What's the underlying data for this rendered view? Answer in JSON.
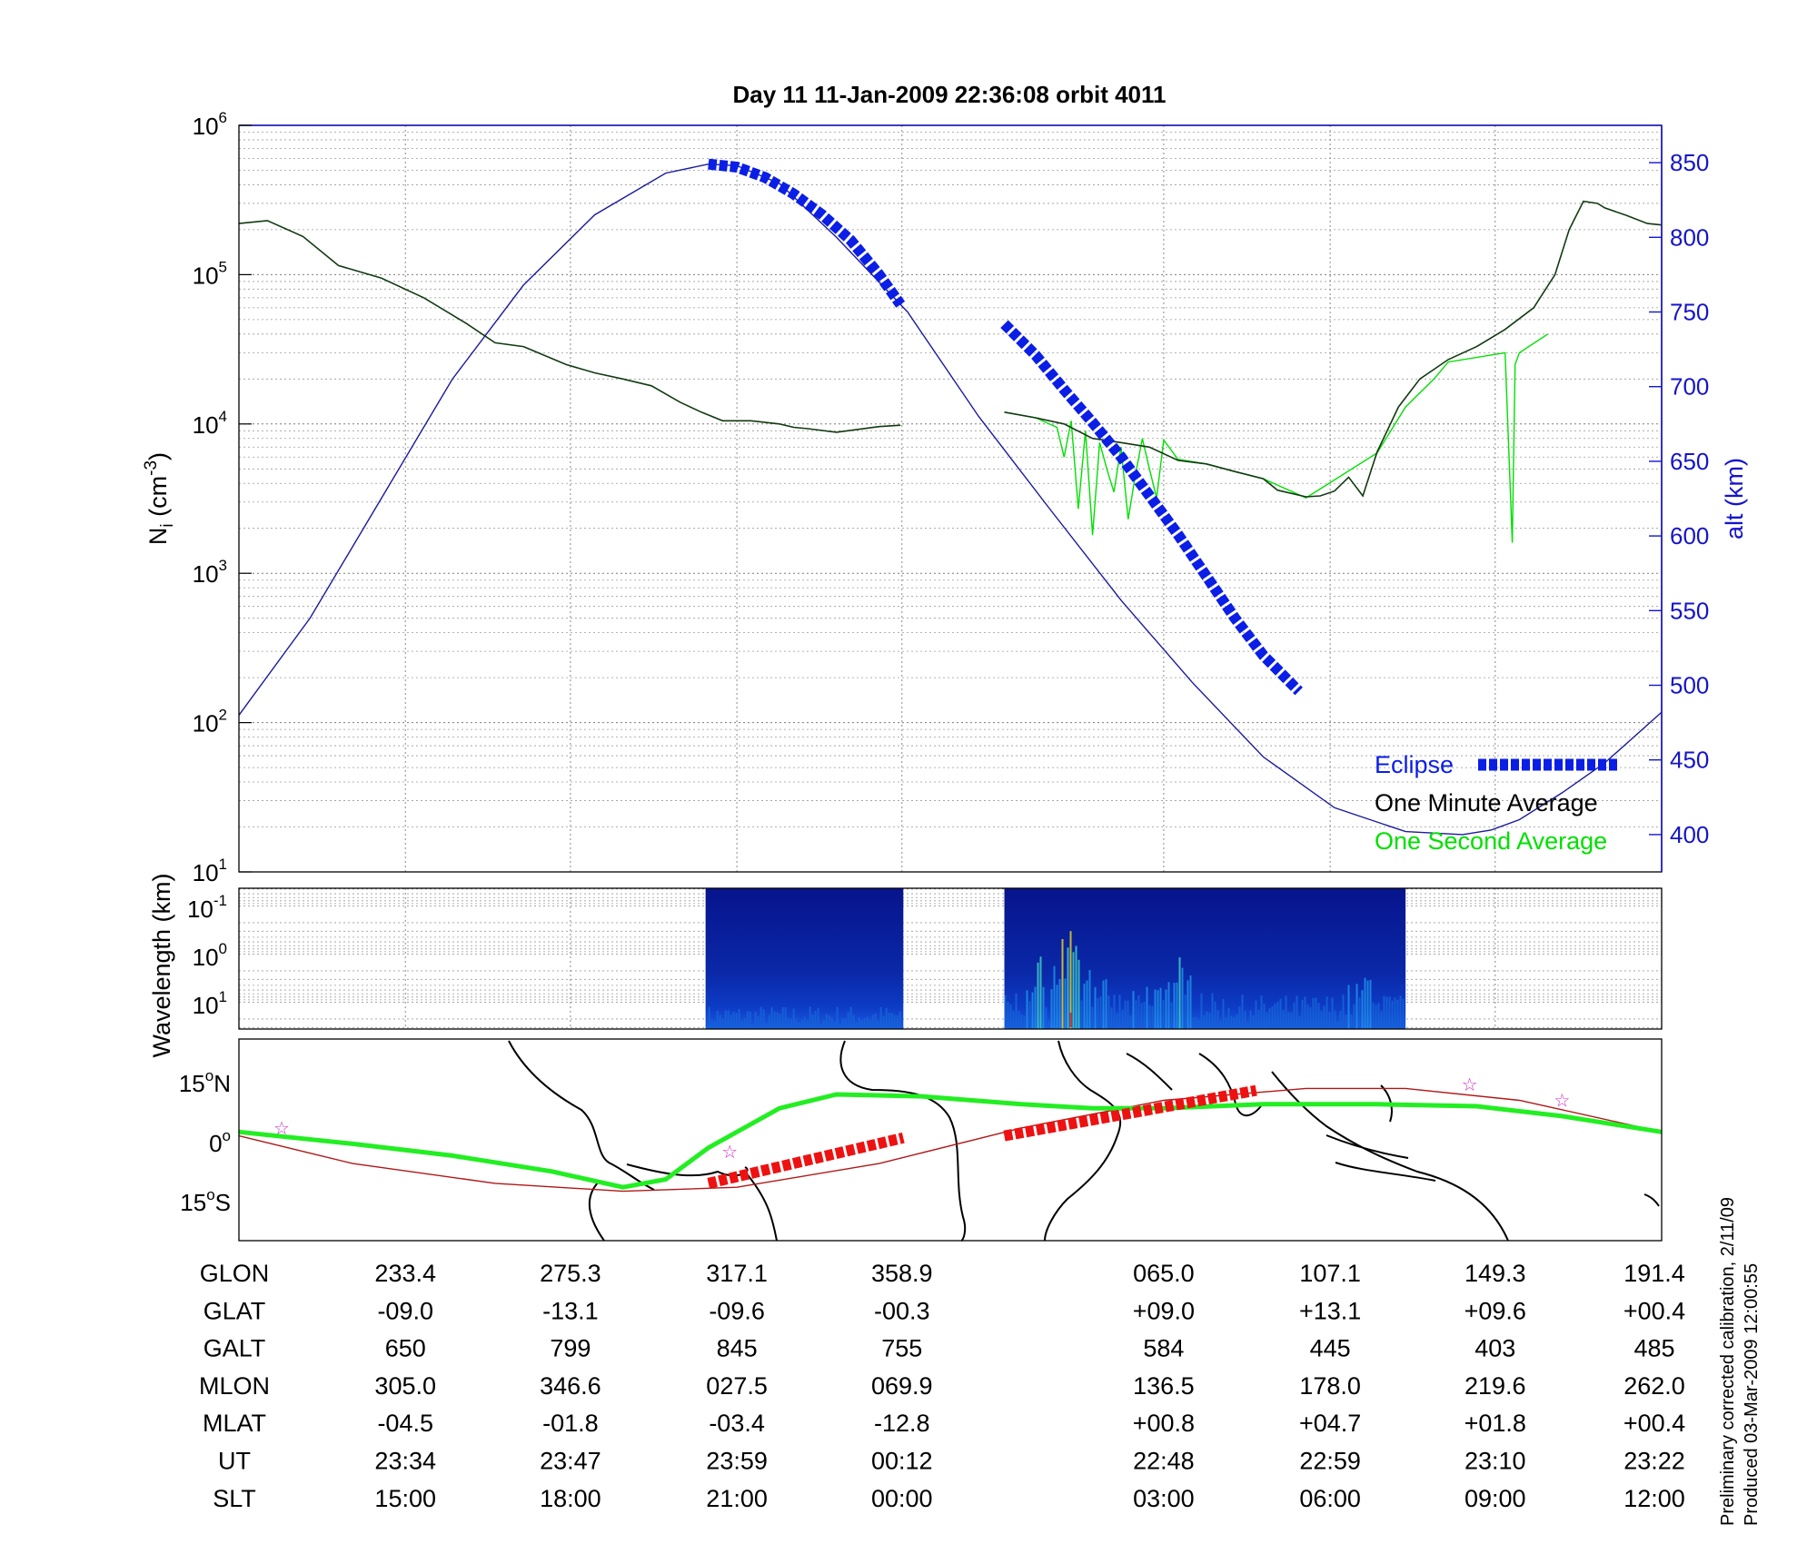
{
  "title": "Day 11  11-Jan-2009 22:36:08   orbit 4011",
  "colors": {
    "eclipse": "#0a1ee6",
    "one_minute": "#123a12",
    "one_second": "#00e000",
    "altitude": "#1a1aa0",
    "axis_right": "#1515c8",
    "orbit_track": "#b01818",
    "footprint": "#22ee22",
    "eclipse_map": "#ee1111",
    "stars": "#cc33cc"
  },
  "chart_data": [
    {
      "type": "line",
      "panel": "density",
      "ylabel_main": "N",
      "ylabel_sub": "i",
      "ylabel_rest": " (cm",
      "ylabel_sup": "-3",
      "ylabel_end": ")",
      "yscale": "log",
      "ylim": [
        10,
        1000000
      ],
      "y_ticks": [
        {
          "base": "10",
          "exp": "1"
        },
        {
          "base": "10",
          "exp": "2"
        },
        {
          "base": "10",
          "exp": "3"
        },
        {
          "base": "10",
          "exp": "4"
        },
        {
          "base": "10",
          "exp": "5"
        },
        {
          "base": "10",
          "exp": "6"
        }
      ],
      "y2label": "alt (km)",
      "y2lim": [
        375,
        875
      ],
      "y2_ticks": [
        "400",
        "450",
        "500",
        "550",
        "600",
        "650",
        "700",
        "750",
        "800",
        "850"
      ],
      "grid": true,
      "legend_position": "bottom-right",
      "legend": [
        {
          "name": "Eclipse",
          "color": "#0a1ee6"
        },
        {
          "name": "One Minute Average",
          "color": "#000000"
        },
        {
          "name": "One Second Average",
          "color": "#00e000"
        }
      ],
      "series": [
        {
          "name": "One Minute Average",
          "x": [
            0,
            0.02,
            0.045,
            0.07,
            0.1,
            0.13,
            0.16,
            0.18,
            0.2,
            0.23,
            0.25,
            0.27,
            0.29,
            0.31,
            0.325,
            0.34,
            0.36,
            0.38,
            0.39,
            0.4,
            0.42,
            0.435,
            0.45,
            0.465
          ],
          "y": [
            220000,
            230000,
            180000,
            115000,
            95000,
            70000,
            47000,
            35000,
            33000,
            25000,
            22000,
            20000,
            18000,
            14000,
            12000,
            10500,
            10500,
            10000,
            9500,
            9300,
            8800,
            9200,
            9600,
            9800
          ]
        },
        {
          "name": "One Minute Average",
          "x": [
            0.538,
            0.56,
            0.58,
            0.6,
            0.62,
            0.64,
            0.66,
            0.68,
            0.7,
            0.72,
            0.73,
            0.75,
            0.76,
            0.77,
            0.78,
            0.79,
            0.8,
            0.815,
            0.83,
            0.85,
            0.87,
            0.89,
            0.91,
            0.925,
            0.935,
            0.945,
            0.955,
            0.96,
            0.975,
            0.99,
            1.0
          ],
          "y": [
            12000,
            11000,
            10000,
            8000,
            7500,
            7000,
            5700,
            5400,
            4800,
            4300,
            3600,
            3250,
            3300,
            3550,
            4400,
            3300,
            6500,
            13000,
            20000,
            27000,
            33000,
            43000,
            60000,
            100000,
            200000,
            310000,
            300000,
            280000,
            250000,
            220000,
            215000
          ]
        },
        {
          "name": "One Second Average",
          "x": [
            0.538,
            0.56,
            0.575,
            0.58,
            0.585,
            0.59,
            0.595,
            0.6,
            0.605,
            0.61,
            0.615,
            0.62,
            0.625,
            0.63,
            0.635,
            0.64,
            0.645,
            0.65,
            0.66,
            0.68,
            0.7,
            0.72,
            0.75,
            0.8,
            0.82,
            0.84,
            0.85,
            0.89,
            0.895,
            0.897,
            0.9,
            0.92
          ],
          "y": [
            12000,
            11000,
            9500,
            6000,
            10500,
            2700,
            9000,
            1800,
            7500,
            5000,
            3500,
            7000,
            2300,
            4500,
            8000,
            5000,
            3200,
            7800,
            5800,
            5400,
            4800,
            4300,
            3200,
            6400,
            13000,
            20000,
            26000,
            30000,
            1600,
            25000,
            30000,
            40000
          ]
        },
        {
          "name": "alt (km)",
          "x": [
            0,
            0.05,
            0.1,
            0.15,
            0.2,
            0.25,
            0.3,
            0.33,
            0.35,
            0.38,
            0.42,
            0.47,
            0.52,
            0.57,
            0.62,
            0.67,
            0.72,
            0.77,
            0.82,
            0.86,
            0.88,
            0.9,
            0.93,
            0.96,
            1.0
          ],
          "y": [
            480,
            545,
            625,
            705,
            768,
            815,
            843,
            849,
            848,
            836,
            800,
            750,
            680,
            618,
            557,
            502,
            452,
            418,
            402,
            400,
            403,
            410,
            428,
            448,
            482
          ]
        },
        {
          "name": "Eclipse",
          "x": [
            0.33,
            0.35,
            0.37,
            0.39,
            0.41,
            0.43,
            0.45,
            0.465,
            0.538,
            0.56,
            0.58,
            0.6,
            0.62,
            0.64,
            0.66,
            0.68,
            0.7,
            0.72,
            0.745
          ],
          "y": [
            849,
            847,
            840,
            829,
            815,
            798,
            775,
            755,
            742,
            721,
            698,
            676,
            653,
            627,
            601,
            573,
            545,
            520,
            496
          ]
        }
      ]
    },
    {
      "type": "heatmap",
      "panel": "spectrogram",
      "ylabel": "Wavelength (km)",
      "yscale": "log",
      "y_ticks": [
        {
          "base": "10",
          "exp": "-1"
        },
        {
          "base": "10",
          "exp": "0"
        },
        {
          "base": "10",
          "exp": "1"
        }
      ],
      "segments": [
        {
          "x": [
            0.328,
            0.467
          ]
        },
        {
          "x": [
            0.538,
            0.82
          ]
        }
      ]
    },
    {
      "type": "line",
      "panel": "map",
      "y_ticks": [
        {
          "value": "15",
          "deg": "o",
          "hem": "N"
        },
        {
          "value": "0",
          "deg": "o",
          "hem": ""
        },
        {
          "value": "15",
          "deg": "o",
          "hem": "S"
        }
      ],
      "ylim": [
        -25,
        25
      ],
      "series": [
        {
          "name": "orbit track",
          "x": [
            0,
            0.08,
            0.18,
            0.27,
            0.35,
            0.45,
            0.55,
            0.65,
            0.75,
            0.82,
            0.9,
            1.0
          ],
          "y": [
            1,
            -6,
            -11,
            -13,
            -12,
            -6,
            3,
            10,
            13,
            13,
            10,
            2
          ]
        },
        {
          "name": "footprint",
          "x": [
            0,
            0.08,
            0.15,
            0.22,
            0.27,
            0.3,
            0.33,
            0.38,
            0.42,
            0.48,
            0.55,
            0.6,
            0.65,
            0.72,
            0.8,
            0.87,
            0.93,
            1.0
          ],
          "y": [
            2,
            -1,
            -4,
            -8,
            -12,
            -10,
            -2,
            8,
            11.5,
            11,
            9,
            8,
            8,
            9,
            9,
            8.5,
            6,
            2
          ]
        },
        {
          "name": "eclipse",
          "x": [
            0.33,
            0.467
          ],
          "y": [
            -11,
            0.5
          ]
        },
        {
          "name": "eclipse",
          "x": [
            0.538,
            0.715
          ],
          "y": [
            1,
            12.5
          ]
        }
      ],
      "stars": [
        {
          "x": 0.03,
          "y": 3
        },
        {
          "x": 0.345,
          "y": -3
        },
        {
          "x": 0.865,
          "y": 14
        },
        {
          "x": 0.93,
          "y": 10
        }
      ]
    }
  ],
  "table": {
    "columns_x": [
      0.117,
      0.233,
      0.35,
      0.466,
      0.65,
      0.767,
      0.883,
      1.0
    ],
    "rows": [
      {
        "label": "GLON",
        "values": [
          "233.4",
          "275.3",
          "317.1",
          "358.9",
          "065.0",
          "107.1",
          "149.3",
          "191.4"
        ]
      },
      {
        "label": "GLAT",
        "values": [
          "-09.0",
          "-13.1",
          "-09.6",
          "-00.3",
          "+09.0",
          "+13.1",
          "+09.6",
          "+00.4"
        ]
      },
      {
        "label": "GALT",
        "values": [
          "650",
          "799",
          "845",
          "755",
          "584",
          "445",
          "403",
          "485"
        ]
      },
      {
        "label": "MLON",
        "values": [
          "305.0",
          "346.6",
          "027.5",
          "069.9",
          "136.5",
          "178.0",
          "219.6",
          "262.0"
        ]
      },
      {
        "label": "MLAT",
        "values": [
          "-04.5",
          "-01.8",
          "-03.4",
          "-12.8",
          "+00.8",
          "+04.7",
          "+01.8",
          "+00.4"
        ]
      },
      {
        "label": "UT",
        "values": [
          "23:34",
          "23:47",
          "23:59",
          "00:12",
          "22:48",
          "22:59",
          "23:10",
          "23:22"
        ]
      },
      {
        "label": "SLT",
        "values": [
          "15:00",
          "18:00",
          "21:00",
          "00:00",
          "03:00",
          "06:00",
          "09:00",
          "12:00"
        ]
      }
    ]
  },
  "footnotes": {
    "line1": "Preliminary corrected calibration, 2/11/09",
    "line2": "Produced 03-Mar-2009 12:00:55"
  }
}
